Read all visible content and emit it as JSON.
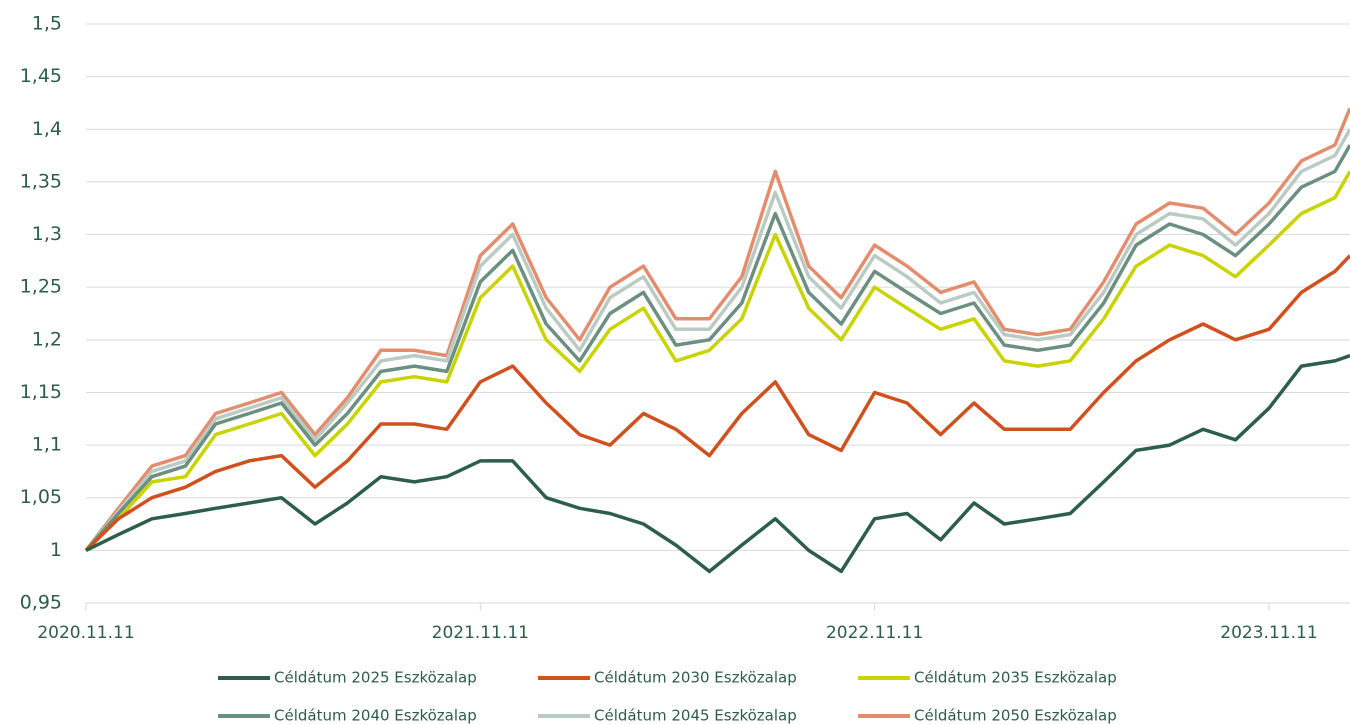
{
  "chart_data": {
    "type": "line",
    "x": [
      "2020.11.11",
      "2020.12.11",
      "2021.01.11",
      "2021.02.11",
      "2021.03.11",
      "2021.04.11",
      "2021.05.11",
      "2021.06.11",
      "2021.07.11",
      "2021.08.11",
      "2021.09.11",
      "2021.10.11",
      "2021.11.11",
      "2021.12.11",
      "2022.01.11",
      "2022.02.11",
      "2022.03.11",
      "2022.04.11",
      "2022.05.11",
      "2022.06.11",
      "2022.07.11",
      "2022.08.11",
      "2022.09.11",
      "2022.10.11",
      "2022.11.11",
      "2022.12.11",
      "2023.01.11",
      "2023.02.11",
      "2023.03.11",
      "2023.04.11",
      "2023.05.11",
      "2023.06.11",
      "2023.07.11",
      "2023.08.11",
      "2023.09.11",
      "2023.10.11",
      "2023.11.11",
      "2023.12.11",
      "2024.01.11",
      "2024.01.25"
    ],
    "series": [
      {
        "name": "Céldátum 2025 Eszközalap",
        "color": "#2d5e4a",
        "values": [
          1.0,
          1.015,
          1.03,
          1.035,
          1.04,
          1.045,
          1.05,
          1.025,
          1.045,
          1.07,
          1.065,
          1.07,
          1.085,
          1.085,
          1.05,
          1.04,
          1.035,
          1.025,
          1.005,
          0.98,
          1.005,
          1.03,
          1.0,
          0.98,
          1.03,
          1.035,
          1.01,
          1.045,
          1.025,
          1.03,
          1.035,
          1.065,
          1.095,
          1.1,
          1.115,
          1.105,
          1.135,
          1.175,
          1.18,
          1.185
        ]
      },
      {
        "name": "Céldátum 2030 Eszközalap",
        "color": "#d0501e",
        "values": [
          1.0,
          1.03,
          1.05,
          1.06,
          1.075,
          1.085,
          1.09,
          1.06,
          1.085,
          1.12,
          1.12,
          1.115,
          1.16,
          1.175,
          1.14,
          1.11,
          1.1,
          1.13,
          1.115,
          1.09,
          1.13,
          1.16,
          1.11,
          1.095,
          1.15,
          1.14,
          1.11,
          1.14,
          1.115,
          1.115,
          1.115,
          1.15,
          1.18,
          1.2,
          1.215,
          1.2,
          1.21,
          1.245,
          1.265,
          1.28
        ]
      },
      {
        "name": "Céldátum 2035 Eszközalap",
        "color": "#c8d400",
        "values": [
          1.0,
          1.03,
          1.065,
          1.07,
          1.11,
          1.12,
          1.13,
          1.09,
          1.12,
          1.16,
          1.165,
          1.16,
          1.24,
          1.27,
          1.2,
          1.17,
          1.21,
          1.23,
          1.18,
          1.19,
          1.22,
          1.3,
          1.23,
          1.2,
          1.25,
          1.23,
          1.21,
          1.22,
          1.18,
          1.175,
          1.18,
          1.22,
          1.27,
          1.29,
          1.28,
          1.26,
          1.29,
          1.32,
          1.335,
          1.36
        ]
      },
      {
        "name": "Céldátum 2040 Eszközalap",
        "color": "#6b8f80",
        "values": [
          1.0,
          1.035,
          1.07,
          1.08,
          1.12,
          1.13,
          1.14,
          1.1,
          1.13,
          1.17,
          1.175,
          1.17,
          1.255,
          1.285,
          1.215,
          1.18,
          1.225,
          1.245,
          1.195,
          1.2,
          1.235,
          1.32,
          1.245,
          1.215,
          1.265,
          1.245,
          1.225,
          1.235,
          1.195,
          1.19,
          1.195,
          1.235,
          1.29,
          1.31,
          1.3,
          1.28,
          1.31,
          1.345,
          1.36,
          1.385
        ]
      },
      {
        "name": "Céldátum 2045 Eszközalap",
        "color": "#b9cbc2",
        "values": [
          1.0,
          1.037,
          1.075,
          1.085,
          1.125,
          1.135,
          1.145,
          1.105,
          1.14,
          1.18,
          1.185,
          1.18,
          1.27,
          1.3,
          1.23,
          1.19,
          1.24,
          1.26,
          1.21,
          1.21,
          1.25,
          1.34,
          1.26,
          1.23,
          1.28,
          1.26,
          1.235,
          1.245,
          1.205,
          1.2,
          1.205,
          1.245,
          1.3,
          1.32,
          1.315,
          1.29,
          1.32,
          1.36,
          1.375,
          1.4
        ]
      },
      {
        "name": "Céldátum 2050 Eszközalap",
        "color": "#e38d6e",
        "values": [
          1.0,
          1.04,
          1.08,
          1.09,
          1.13,
          1.14,
          1.15,
          1.11,
          1.145,
          1.19,
          1.19,
          1.185,
          1.28,
          1.31,
          1.24,
          1.2,
          1.25,
          1.27,
          1.22,
          1.22,
          1.26,
          1.36,
          1.27,
          1.24,
          1.29,
          1.27,
          1.245,
          1.255,
          1.21,
          1.205,
          1.21,
          1.255,
          1.31,
          1.33,
          1.325,
          1.3,
          1.33,
          1.37,
          1.385,
          1.42
        ]
      }
    ],
    "xlim": [
      "2020.11.11",
      "2024.01.25"
    ],
    "xticks": [
      "2020.11.11",
      "2021.11.11",
      "2022.11.11",
      "2023.11.11"
    ],
    "ylim": [
      0.95,
      1.5
    ],
    "yticks": [
      {
        "value": 0.95,
        "label": "0,95"
      },
      1,
      {
        "value": 1.05,
        "label": "1,05"
      },
      {
        "value": 1.1,
        "label": "1,1"
      },
      {
        "value": 1.15,
        "label": "1,15"
      },
      {
        "value": 1.2,
        "label": "1,2"
      },
      {
        "value": 1.25,
        "label": "1,25"
      },
      {
        "value": 1.3,
        "label": "1,3"
      },
      {
        "value": 1.35,
        "label": "1,35"
      },
      {
        "value": 1.4,
        "label": "1,4"
      },
      {
        "value": 1.45,
        "label": "1,45"
      },
      {
        "value": 1.5,
        "label": "1,5"
      }
    ],
    "grid": true,
    "legend": "bottom"
  }
}
